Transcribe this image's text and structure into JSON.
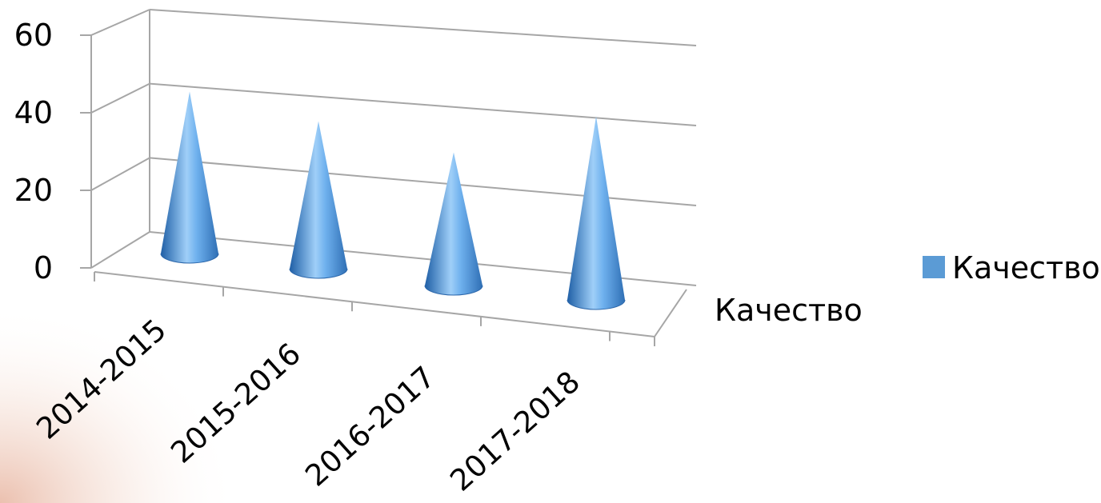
{
  "chart_data": {
    "type": "bar",
    "subtype": "3d-cone",
    "categories": [
      "2014-2015",
      "2015-2016",
      "2016-2017",
      "2017-2018"
    ],
    "series": [
      {
        "name": "Качество",
        "values": [
          45,
          41,
          37,
          51
        ]
      }
    ],
    "ylim": [
      0,
      60
    ],
    "y_ticks": [
      "0",
      "20",
      "40",
      "60"
    ],
    "depth_axis_label": "Качество",
    "legend": {
      "position": "right",
      "entries": [
        "Качество"
      ]
    },
    "grid": true,
    "colors": {
      "series": "#5b9bd5",
      "grid": "#a6a6a6"
    }
  }
}
